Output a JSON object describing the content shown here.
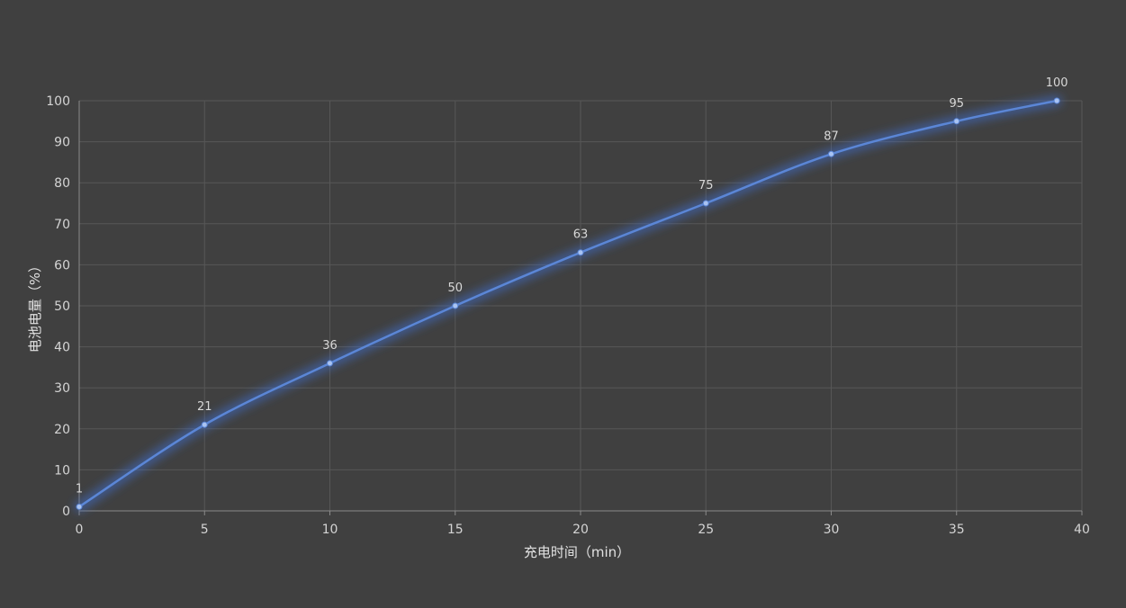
{
  "chart_data": {
    "type": "line",
    "title": "",
    "xlabel": "充电时间（min）",
    "ylabel": "电池电量（%）",
    "x": [
      0,
      5,
      10,
      15,
      20,
      25,
      30,
      35,
      39
    ],
    "series": [
      {
        "values": [
          1,
          21,
          36,
          50,
          63,
          75,
          87,
          95,
          100
        ]
      }
    ],
    "xlim": [
      0,
      40
    ],
    "ylim": [
      0,
      100
    ],
    "xticks": [
      "0",
      "5",
      "10",
      "15",
      "20",
      "25",
      "30",
      "35",
      "40"
    ],
    "yticks": [
      "0",
      "10",
      "20",
      "30",
      "40",
      "50",
      "60",
      "70",
      "80",
      "90",
      "100"
    ],
    "data_labels": [
      "1",
      "21",
      "36",
      "50",
      "63",
      "75",
      "87",
      "95",
      "100"
    ],
    "grid": true,
    "smooth": true,
    "colors": {
      "background": "#404040",
      "line": "#5b86d6",
      "glow": "#3f6fd0",
      "marker": "#a9c3f2",
      "grid": "#575757",
      "axis": "#8a8a8a"
    }
  }
}
